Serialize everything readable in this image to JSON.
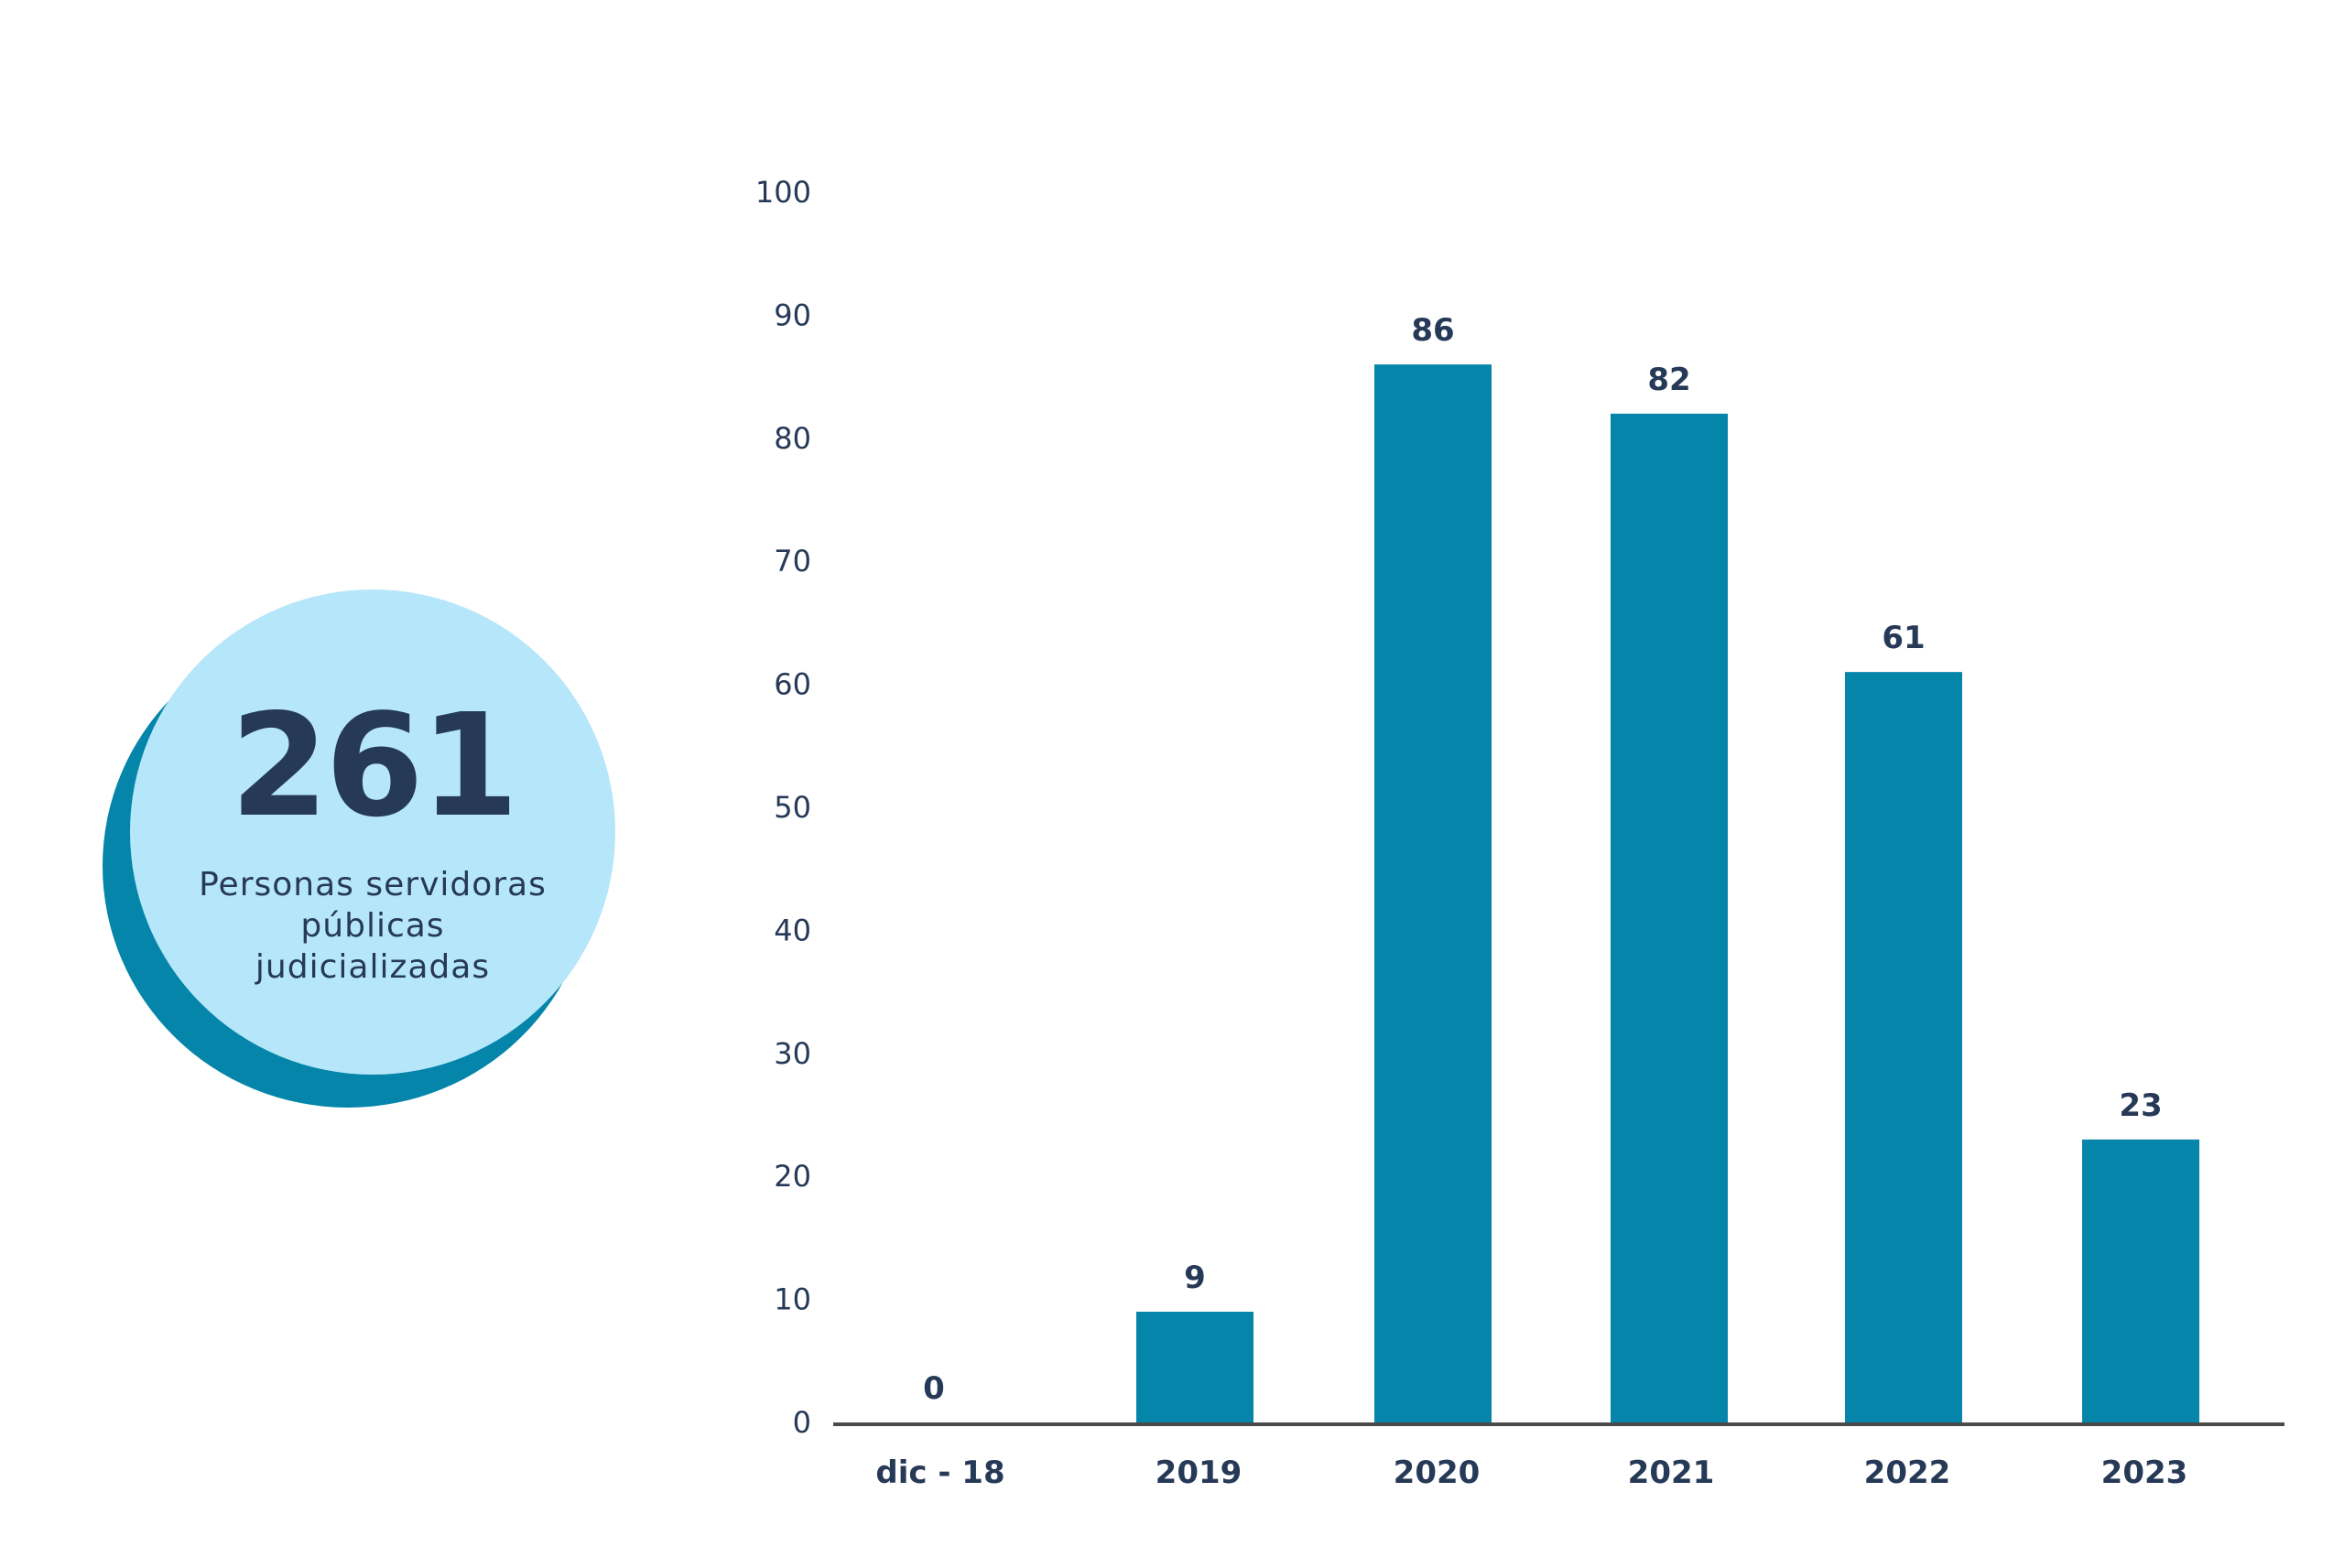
{
  "summary": {
    "total": "261",
    "caption_lines": [
      "Personas servidoras",
      "públicas",
      "judicializadas"
    ]
  },
  "colors": {
    "bar": "#0485a9",
    "badge_fill": "#b5e6fa",
    "badge_shadow": "#0485a9",
    "text": "#263957",
    "axis": "#4a4a4a"
  },
  "chart_data": {
    "type": "bar",
    "categories": [
      "dic - 18",
      "2019",
      "2020",
      "2021",
      "2022",
      "2023"
    ],
    "values": [
      0,
      9,
      86,
      82,
      61,
      23
    ],
    "value_labels": [
      "0",
      "9",
      "86",
      "82",
      "61",
      "23"
    ],
    "title": "",
    "xlabel": "",
    "ylabel": "",
    "ylim": [
      0,
      100
    ],
    "yticks": [
      0,
      10,
      20,
      30,
      40,
      50,
      60,
      70,
      80,
      90,
      100
    ],
    "grid": false,
    "legend": "none"
  }
}
